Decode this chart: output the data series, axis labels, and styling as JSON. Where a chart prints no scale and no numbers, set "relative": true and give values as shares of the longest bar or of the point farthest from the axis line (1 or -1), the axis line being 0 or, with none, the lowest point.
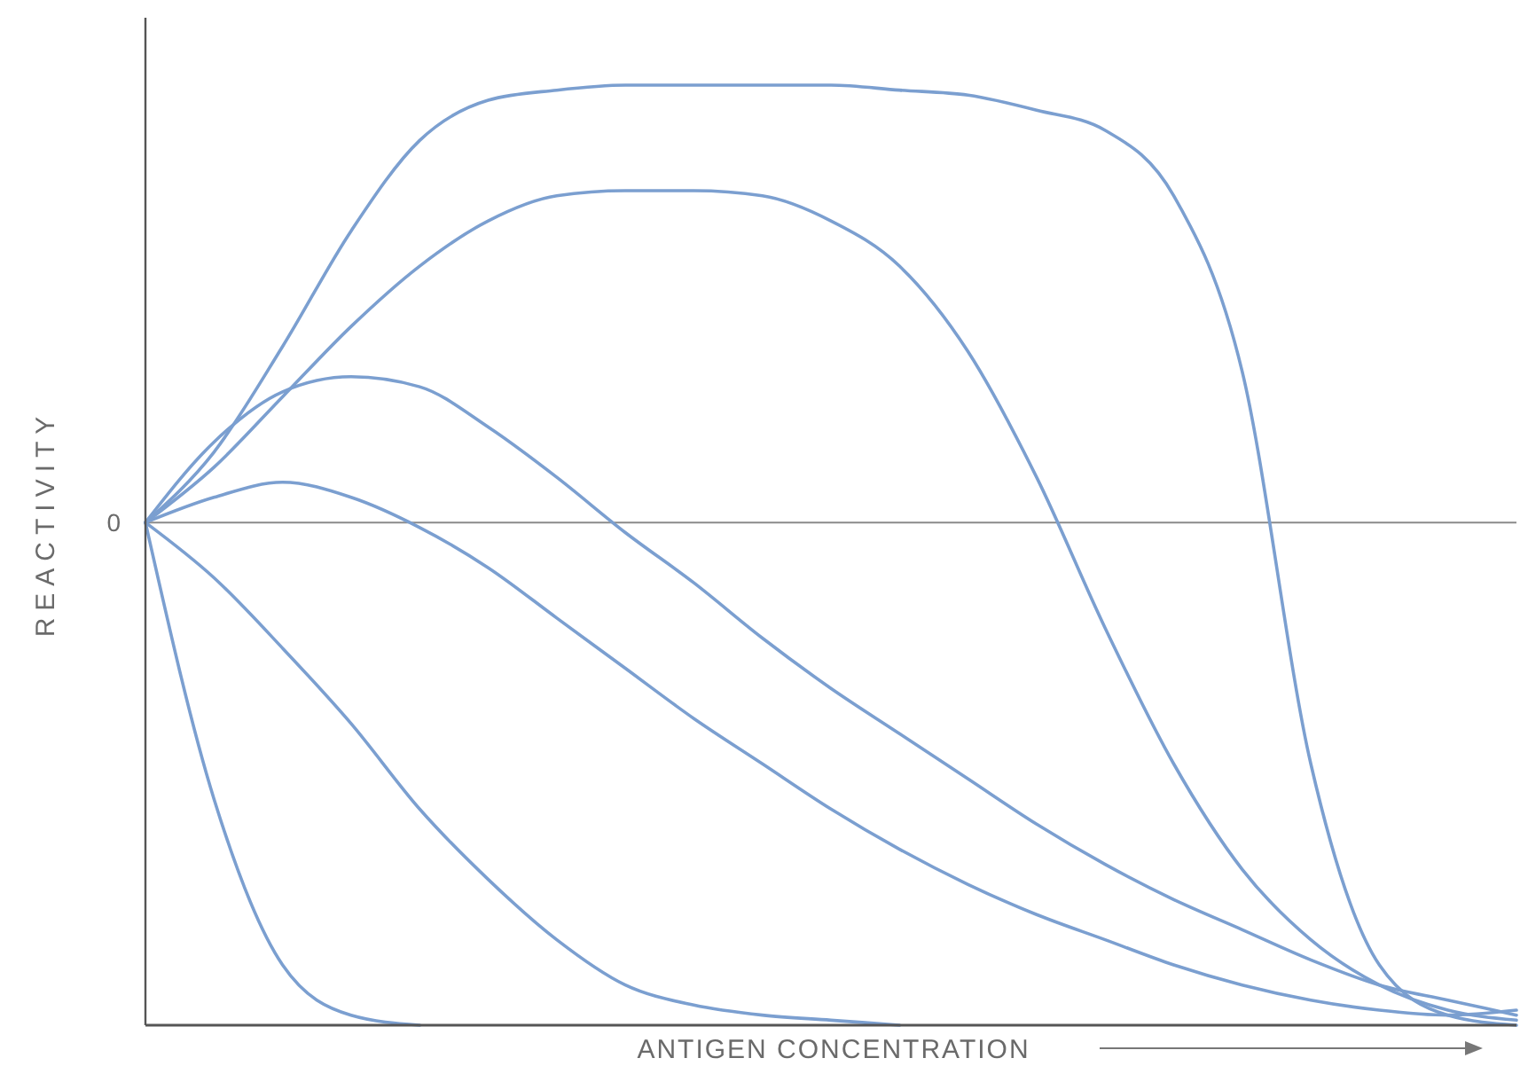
{
  "chart_data": {
    "type": "line",
    "relative": true,
    "xlabel": "ANTIGEN CONCENTRATION",
    "ylabel": "REACTIVITY",
    "categories": [
      null,
      null,
      null,
      null,
      null,
      null,
      null,
      null,
      null,
      null,
      null,
      null,
      null,
      null,
      null,
      null,
      null,
      null,
      null,
      null,
      null
    ],
    "ref_lines": [
      {
        "axis": "y",
        "value": 0,
        "label": "0",
        "color": "#8a8a8a"
      }
    ],
    "marker": "none",
    "line_style": "solid",
    "series": [
      {
        "color": "#7b9fd0",
        "values": [
          0,
          0.14,
          0.35,
          0.58,
          0.76,
          0.84,
          0.86,
          0.87,
          0.87,
          0.87,
          0.87,
          0.86,
          0.85,
          0.82,
          0.78,
          0.65,
          0.3,
          -0.48,
          -0.88,
          -0.98,
          -1
        ]
      },
      {
        "color": "#7b9fd0",
        "values": [
          0,
          0.11,
          0.25,
          0.39,
          0.51,
          0.6,
          0.65,
          0.66,
          0.66,
          0.65,
          0.6,
          0.51,
          0.34,
          0.09,
          -0.21,
          -0.48,
          -0.69,
          -0.83,
          -0.92,
          -0.97,
          -0.99
        ]
      },
      {
        "color": "#7b9fd0",
        "values": [
          0,
          0.16,
          0.26,
          0.29,
          0.27,
          0.19,
          0.09,
          -0.02,
          -0.12,
          -0.23,
          -0.33,
          -0.42,
          -0.51,
          -0.6,
          -0.68,
          -0.75,
          -0.81,
          -0.87,
          -0.92,
          -0.95,
          -0.98
        ]
      },
      {
        "color": "#7b9fd0",
        "values": [
          0,
          0.05,
          0.08,
          0.05,
          -0.01,
          -0.09,
          -0.19,
          -0.29,
          -0.39,
          -0.48,
          -0.57,
          -0.65,
          -0.72,
          -0.78,
          -0.83,
          -0.88,
          -0.92,
          -0.95,
          -0.97,
          -0.98,
          -0.97
        ]
      },
      {
        "color": "#7b9fd0",
        "values": [
          0,
          -0.11,
          -0.25,
          -0.4,
          -0.57,
          -0.71,
          -0.83,
          -0.92,
          -0.96,
          -0.98,
          -0.99,
          -1,
          null,
          null,
          null,
          null,
          null,
          null,
          null,
          null,
          null
        ]
      },
      {
        "color": "#7b9fd0",
        "values": [
          0,
          -0.55,
          -0.88,
          -0.98,
          -1,
          null,
          null,
          null,
          null,
          null,
          null,
          null,
          null,
          null,
          null,
          null,
          null,
          null,
          null,
          null,
          null
        ]
      }
    ]
  }
}
